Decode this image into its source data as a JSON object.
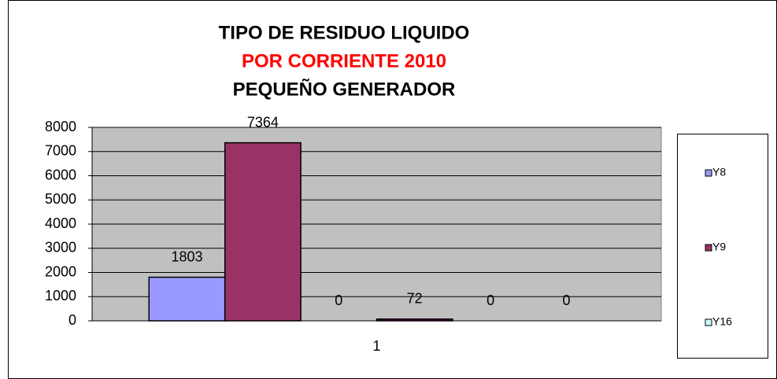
{
  "chart_data": {
    "type": "bar",
    "title": [
      "TIPO DE RESIDUO LIQUIDO",
      "POR CORRIENTE 2010",
      "PEQUEÑO GENERADOR"
    ],
    "title_colors": [
      "#000000",
      "#ff0000",
      "#000000"
    ],
    "categories": [
      "1"
    ],
    "series": [
      {
        "name": "Y8",
        "color": "#9999ff",
        "values": [
          1803
        ]
      },
      {
        "name": "Y9",
        "color": "#993366",
        "values": [
          7364
        ]
      },
      {
        "name": "Y16",
        "color": "#ccffff",
        "values": [
          0
        ]
      },
      {
        "color": "#660066",
        "values": [
          72
        ]
      },
      {
        "color": "#ff8080",
        "values": [
          0
        ]
      },
      {
        "color": "#0066cc",
        "values": [
          0
        ]
      }
    ],
    "ylim": [
      0,
      8000
    ],
    "yticks": [
      0,
      1000,
      2000,
      3000,
      4000,
      5000,
      6000,
      7000,
      8000
    ],
    "grid": true,
    "legend": "right"
  }
}
